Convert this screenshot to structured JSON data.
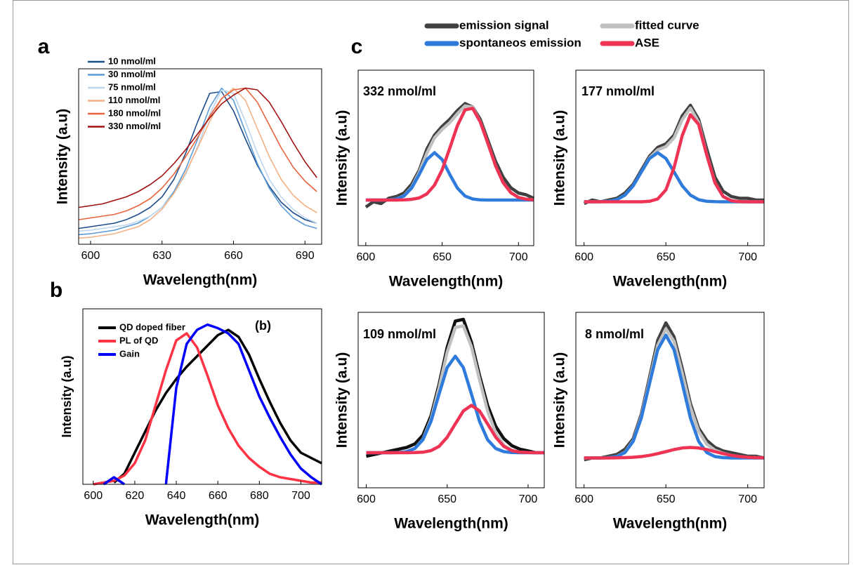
{
  "chart_data": [
    {
      "type": "line",
      "panel": "a",
      "xlabel": "Wavelength(nm)",
      "ylabel": "Intensity (a.u)",
      "x": [
        595,
        600,
        605,
        610,
        615,
        620,
        625,
        630,
        635,
        640,
        645,
        650,
        655,
        660,
        665,
        670,
        675,
        680,
        685,
        690,
        695
      ],
      "xlim": [
        595,
        697
      ],
      "xticks": [
        600,
        630,
        660,
        690
      ],
      "ylim": [
        0,
        1
      ],
      "series": [
        {
          "name": "10 nmol/ml",
          "color": "#1f4e8c",
          "values": [
            0.09,
            0.1,
            0.11,
            0.12,
            0.14,
            0.17,
            0.21,
            0.27,
            0.37,
            0.52,
            0.7,
            0.86,
            0.87,
            0.76,
            0.6,
            0.45,
            0.33,
            0.24,
            0.18,
            0.14,
            0.12
          ]
        },
        {
          "name": "30 nmol/ml",
          "color": "#5b9bd5",
          "values": [
            0.055,
            0.06,
            0.07,
            0.08,
            0.1,
            0.12,
            0.16,
            0.21,
            0.3,
            0.43,
            0.6,
            0.78,
            0.89,
            0.82,
            0.64,
            0.46,
            0.32,
            0.22,
            0.15,
            0.11,
            0.09
          ]
        },
        {
          "name": "75 nmol/ml",
          "color": "#bdd7ee",
          "values": [
            0.075,
            0.08,
            0.09,
            0.1,
            0.11,
            0.13,
            0.16,
            0.21,
            0.29,
            0.4,
            0.56,
            0.74,
            0.88,
            0.86,
            0.7,
            0.52,
            0.37,
            0.27,
            0.2,
            0.15,
            0.12
          ]
        },
        {
          "name": "110 nmol/ml",
          "color": "#f4b183",
          "values": [
            0.035,
            0.04,
            0.05,
            0.06,
            0.08,
            0.1,
            0.14,
            0.2,
            0.29,
            0.41,
            0.55,
            0.7,
            0.83,
            0.89,
            0.82,
            0.66,
            0.5,
            0.37,
            0.28,
            0.22,
            0.18
          ]
        },
        {
          "name": "180 nmol/ml",
          "color": "#e8643c",
          "values": [
            0.14,
            0.15,
            0.16,
            0.17,
            0.19,
            0.22,
            0.26,
            0.32,
            0.4,
            0.5,
            0.61,
            0.73,
            0.83,
            0.88,
            0.89,
            0.81,
            0.68,
            0.55,
            0.44,
            0.36,
            0.3
          ]
        },
        {
          "name": "330 nmol/ml",
          "color": "#a01010",
          "values": [
            0.21,
            0.22,
            0.23,
            0.25,
            0.27,
            0.3,
            0.34,
            0.39,
            0.46,
            0.54,
            0.63,
            0.72,
            0.8,
            0.85,
            0.89,
            0.88,
            0.81,
            0.7,
            0.58,
            0.47,
            0.38
          ]
        }
      ]
    },
    {
      "type": "line",
      "panel": "b",
      "annotation": "(b)",
      "xlabel": "Wavelength(nm)",
      "ylabel": "Intensity (a.u)",
      "x": [
        600,
        605,
        610,
        615,
        620,
        625,
        630,
        635,
        640,
        645,
        650,
        655,
        660,
        665,
        670,
        675,
        680,
        685,
        690,
        695,
        700,
        705,
        710
      ],
      "xlim": [
        595,
        710
      ],
      "xticks": [
        600,
        620,
        640,
        660,
        680,
        700
      ],
      "ylim": [
        0,
        1
      ],
      "series": [
        {
          "name": "QD doped fiber",
          "color": "#000000",
          "values": [
            null,
            null,
            0.01,
            0.06,
            0.18,
            0.3,
            0.42,
            0.52,
            0.6,
            0.67,
            0.73,
            0.79,
            0.85,
            0.88,
            0.84,
            0.74,
            0.6,
            0.47,
            0.35,
            0.25,
            0.18,
            0.15,
            0.12
          ]
        },
        {
          "name": "PL of QD",
          "color": "#ff3344",
          "values": [
            0,
            0.01,
            0.02,
            0.05,
            0.12,
            0.25,
            0.45,
            0.65,
            0.82,
            0.86,
            0.78,
            0.62,
            0.45,
            0.32,
            0.22,
            0.15,
            0.1,
            0.06,
            0.04,
            0.03,
            0.02,
            0.01,
            0.01
          ]
        },
        {
          "name": "Gain",
          "color": "#0000ff",
          "values": [
            null,
            0,
            0.04,
            0,
            null,
            null,
            null,
            0,
            0.55,
            0.8,
            0.88,
            0.91,
            0.89,
            0.86,
            0.8,
            0.65,
            0.5,
            0.38,
            0.27,
            0.17,
            0.09,
            0.04,
            0
          ]
        }
      ]
    },
    {
      "type": "line",
      "panel": "c",
      "annotation": "332 nmol/ml",
      "xlabel": "Wavelength(nm)",
      "ylabel": "Intensity (a.u)",
      "x": [
        600,
        605,
        610,
        615,
        620,
        625,
        630,
        635,
        640,
        645,
        650,
        655,
        660,
        665,
        670,
        675,
        680,
        685,
        690,
        695,
        700,
        705,
        710
      ],
      "xlim": [
        595,
        710
      ],
      "xticks": [
        600,
        650,
        700
      ],
      "ylim": [
        0,
        1
      ],
      "series": [
        {
          "name": "emission signal",
          "color": "#404040",
          "values": [
            0.22,
            0.25,
            0.24,
            0.27,
            0.28,
            0.3,
            0.35,
            0.43,
            0.55,
            0.63,
            0.68,
            0.72,
            0.77,
            0.81,
            0.79,
            0.72,
            0.6,
            0.48,
            0.39,
            0.33,
            0.3,
            0.29,
            0.27
          ]
        },
        {
          "name": "fitted curve",
          "color": "#c0c0c0",
          "values": [
            0.26,
            0.26,
            0.26,
            0.261,
            0.266,
            0.284,
            0.332,
            0.418,
            0.526,
            0.615,
            0.663,
            0.701,
            0.752,
            0.797,
            0.789,
            0.706,
            0.582,
            0.455,
            0.359,
            0.302,
            0.275,
            0.265,
            0.261
          ]
        },
        {
          "name": "spontaneos emission",
          "color": "#2e7bdc",
          "values": [
            0.26,
            0.26,
            0.26,
            0.261,
            0.266,
            0.283,
            0.328,
            0.406,
            0.491,
            0.53,
            0.491,
            0.406,
            0.328,
            0.283,
            0.266,
            0.261,
            0.26,
            0.26,
            0.26,
            0.26,
            0.26,
            0.26,
            0.26
          ]
        },
        {
          "name": "ASE",
          "color": "#ee3355",
          "values": [
            0.26,
            0.26,
            0.26,
            0.26,
            0.26,
            0.261,
            0.264,
            0.272,
            0.295,
            0.345,
            0.432,
            0.555,
            0.684,
            0.774,
            0.783,
            0.705,
            0.582,
            0.455,
            0.359,
            0.302,
            0.275,
            0.265,
            0.261
          ]
        }
      ]
    },
    {
      "type": "line",
      "annotation": "177 nmol/ml",
      "xlabel": "Wavelength(nm)",
      "ylabel": "Intensity (a.u)",
      "x": [
        600,
        605,
        610,
        615,
        620,
        625,
        630,
        635,
        640,
        645,
        650,
        655,
        660,
        665,
        670,
        675,
        680,
        685,
        690,
        695,
        700,
        705,
        710
      ],
      "xlim": [
        595,
        710
      ],
      "xticks": [
        600,
        650,
        700
      ],
      "ylim": [
        0,
        1
      ],
      "series": [
        {
          "color": "#404040",
          "values": [
            0.24,
            0.26,
            0.25,
            0.26,
            0.27,
            0.3,
            0.35,
            0.43,
            0.51,
            0.56,
            0.58,
            0.63,
            0.74,
            0.8,
            0.72,
            0.55,
            0.39,
            0.31,
            0.28,
            0.27,
            0.27,
            0.26,
            0.26
          ]
        },
        {
          "color": "#c0c0c0",
          "values": [
            0.25,
            0.25,
            0.251,
            0.253,
            0.262,
            0.288,
            0.341,
            0.42,
            0.5,
            0.546,
            0.565,
            0.615,
            0.719,
            0.784,
            0.703,
            0.519,
            0.359,
            0.28,
            0.256,
            0.251,
            0.25,
            0.25,
            0.25
          ]
        },
        {
          "color": "#2e7bdc",
          "values": [
            0.25,
            0.25,
            0.251,
            0.253,
            0.262,
            0.288,
            0.341,
            0.42,
            0.497,
            0.53,
            0.497,
            0.42,
            0.341,
            0.288,
            0.262,
            0.253,
            0.251,
            0.25,
            0.25,
            0.25,
            0.25,
            0.25,
            0.25
          ]
        },
        {
          "color": "#ee3355",
          "values": [
            0.25,
            0.25,
            0.25,
            0.25,
            0.25,
            0.25,
            0.25,
            0.25,
            0.253,
            0.266,
            0.318,
            0.445,
            0.628,
            0.746,
            0.691,
            0.516,
            0.358,
            0.28,
            0.256,
            0.251,
            0.25,
            0.25,
            0.25
          ]
        }
      ]
    },
    {
      "type": "line",
      "annotation": "109 nmol/ml",
      "xlabel": "Wavelength(nm)",
      "ylabel": "Intensity (a.u)",
      "x": [
        600,
        605,
        610,
        615,
        620,
        625,
        630,
        635,
        640,
        645,
        650,
        655,
        660,
        665,
        670,
        675,
        680,
        685,
        690,
        695,
        700,
        705,
        710
      ],
      "xlim": [
        595,
        710
      ],
      "xticks": [
        600,
        650,
        700
      ],
      "ylim": [
        0,
        1
      ],
      "series": [
        {
          "color": "#101010",
          "values": [
            0.18,
            0.19,
            0.2,
            0.21,
            0.22,
            0.23,
            0.25,
            0.3,
            0.41,
            0.59,
            0.8,
            0.95,
            0.96,
            0.83,
            0.64,
            0.47,
            0.35,
            0.28,
            0.24,
            0.22,
            0.21,
            0.2,
            0.2
          ]
        },
        {
          "color": "#c0c0c0",
          "values": [
            0.2,
            0.2,
            0.2,
            0.2,
            0.201,
            0.206,
            0.225,
            0.277,
            0.391,
            0.57,
            0.773,
            0.914,
            0.923,
            0.804,
            0.617,
            0.438,
            0.312,
            0.242,
            0.213,
            0.203,
            0.201,
            0.2,
            0.2
          ]
        },
        {
          "color": "#2e7bdc",
          "values": [
            0.2,
            0.2,
            0.2,
            0.2,
            0.201,
            0.206,
            0.224,
            0.274,
            0.379,
            0.534,
            0.685,
            0.75,
            0.685,
            0.534,
            0.379,
            0.274,
            0.224,
            0.206,
            0.201,
            0.2,
            0.2,
            0.2,
            0.2
          ]
        },
        {
          "color": "#ee3355",
          "values": [
            0.2,
            0.2,
            0.2,
            0.2,
            0.2,
            0.2,
            0.201,
            0.203,
            0.212,
            0.236,
            0.288,
            0.364,
            0.438,
            0.47,
            0.438,
            0.364,
            0.288,
            0.236,
            0.212,
            0.203,
            0.201,
            0.2,
            0.2
          ]
        }
      ]
    },
    {
      "type": "line",
      "annotation": "8 nmol/ml",
      "xlabel": "Wavelength(nm)",
      "ylabel": "Intensity (a.u)",
      "x": [
        600,
        605,
        610,
        615,
        620,
        625,
        630,
        635,
        640,
        645,
        650,
        655,
        660,
        665,
        670,
        675,
        680,
        685,
        690,
        695,
        700,
        705,
        710
      ],
      "xlim": [
        595,
        710
      ],
      "xticks": [
        600,
        650,
        700
      ],
      "ylim": [
        0,
        1
      ],
      "series": [
        {
          "color": "#404040",
          "values": [
            0.16,
            0.17,
            0.17,
            0.18,
            0.19,
            0.22,
            0.28,
            0.42,
            0.63,
            0.84,
            0.94,
            0.86,
            0.68,
            0.48,
            0.34,
            0.27,
            0.23,
            0.21,
            0.2,
            0.19,
            0.18,
            0.18,
            0.17
          ]
        },
        {
          "color": "#c0c0c0",
          "values": [
            0.17,
            0.17,
            0.17,
            0.172,
            0.179,
            0.203,
            0.269,
            0.406,
            0.61,
            0.812,
            0.906,
            0.835,
            0.652,
            0.458,
            0.322,
            0.249,
            0.214,
            0.197,
            0.185,
            0.178,
            0.174,
            0.172,
            0.171
          ]
        },
        {
          "color": "#2e7bdc",
          "values": [
            0.17,
            0.17,
            0.17,
            0.172,
            0.178,
            0.201,
            0.265,
            0.398,
            0.595,
            0.787,
            0.87,
            0.787,
            0.595,
            0.398,
            0.265,
            0.201,
            0.178,
            0.172,
            0.17,
            0.17,
            0.17,
            0.17,
            0.17
          ]
        },
        {
          "color": "#ee3355",
          "values": [
            0.17,
            0.17,
            0.17,
            0.17,
            0.171,
            0.172,
            0.174,
            0.178,
            0.185,
            0.195,
            0.206,
            0.218,
            0.227,
            0.23,
            0.227,
            0.218,
            0.206,
            0.195,
            0.185,
            0.178,
            0.174,
            0.172,
            0.171
          ]
        }
      ]
    }
  ]
}
